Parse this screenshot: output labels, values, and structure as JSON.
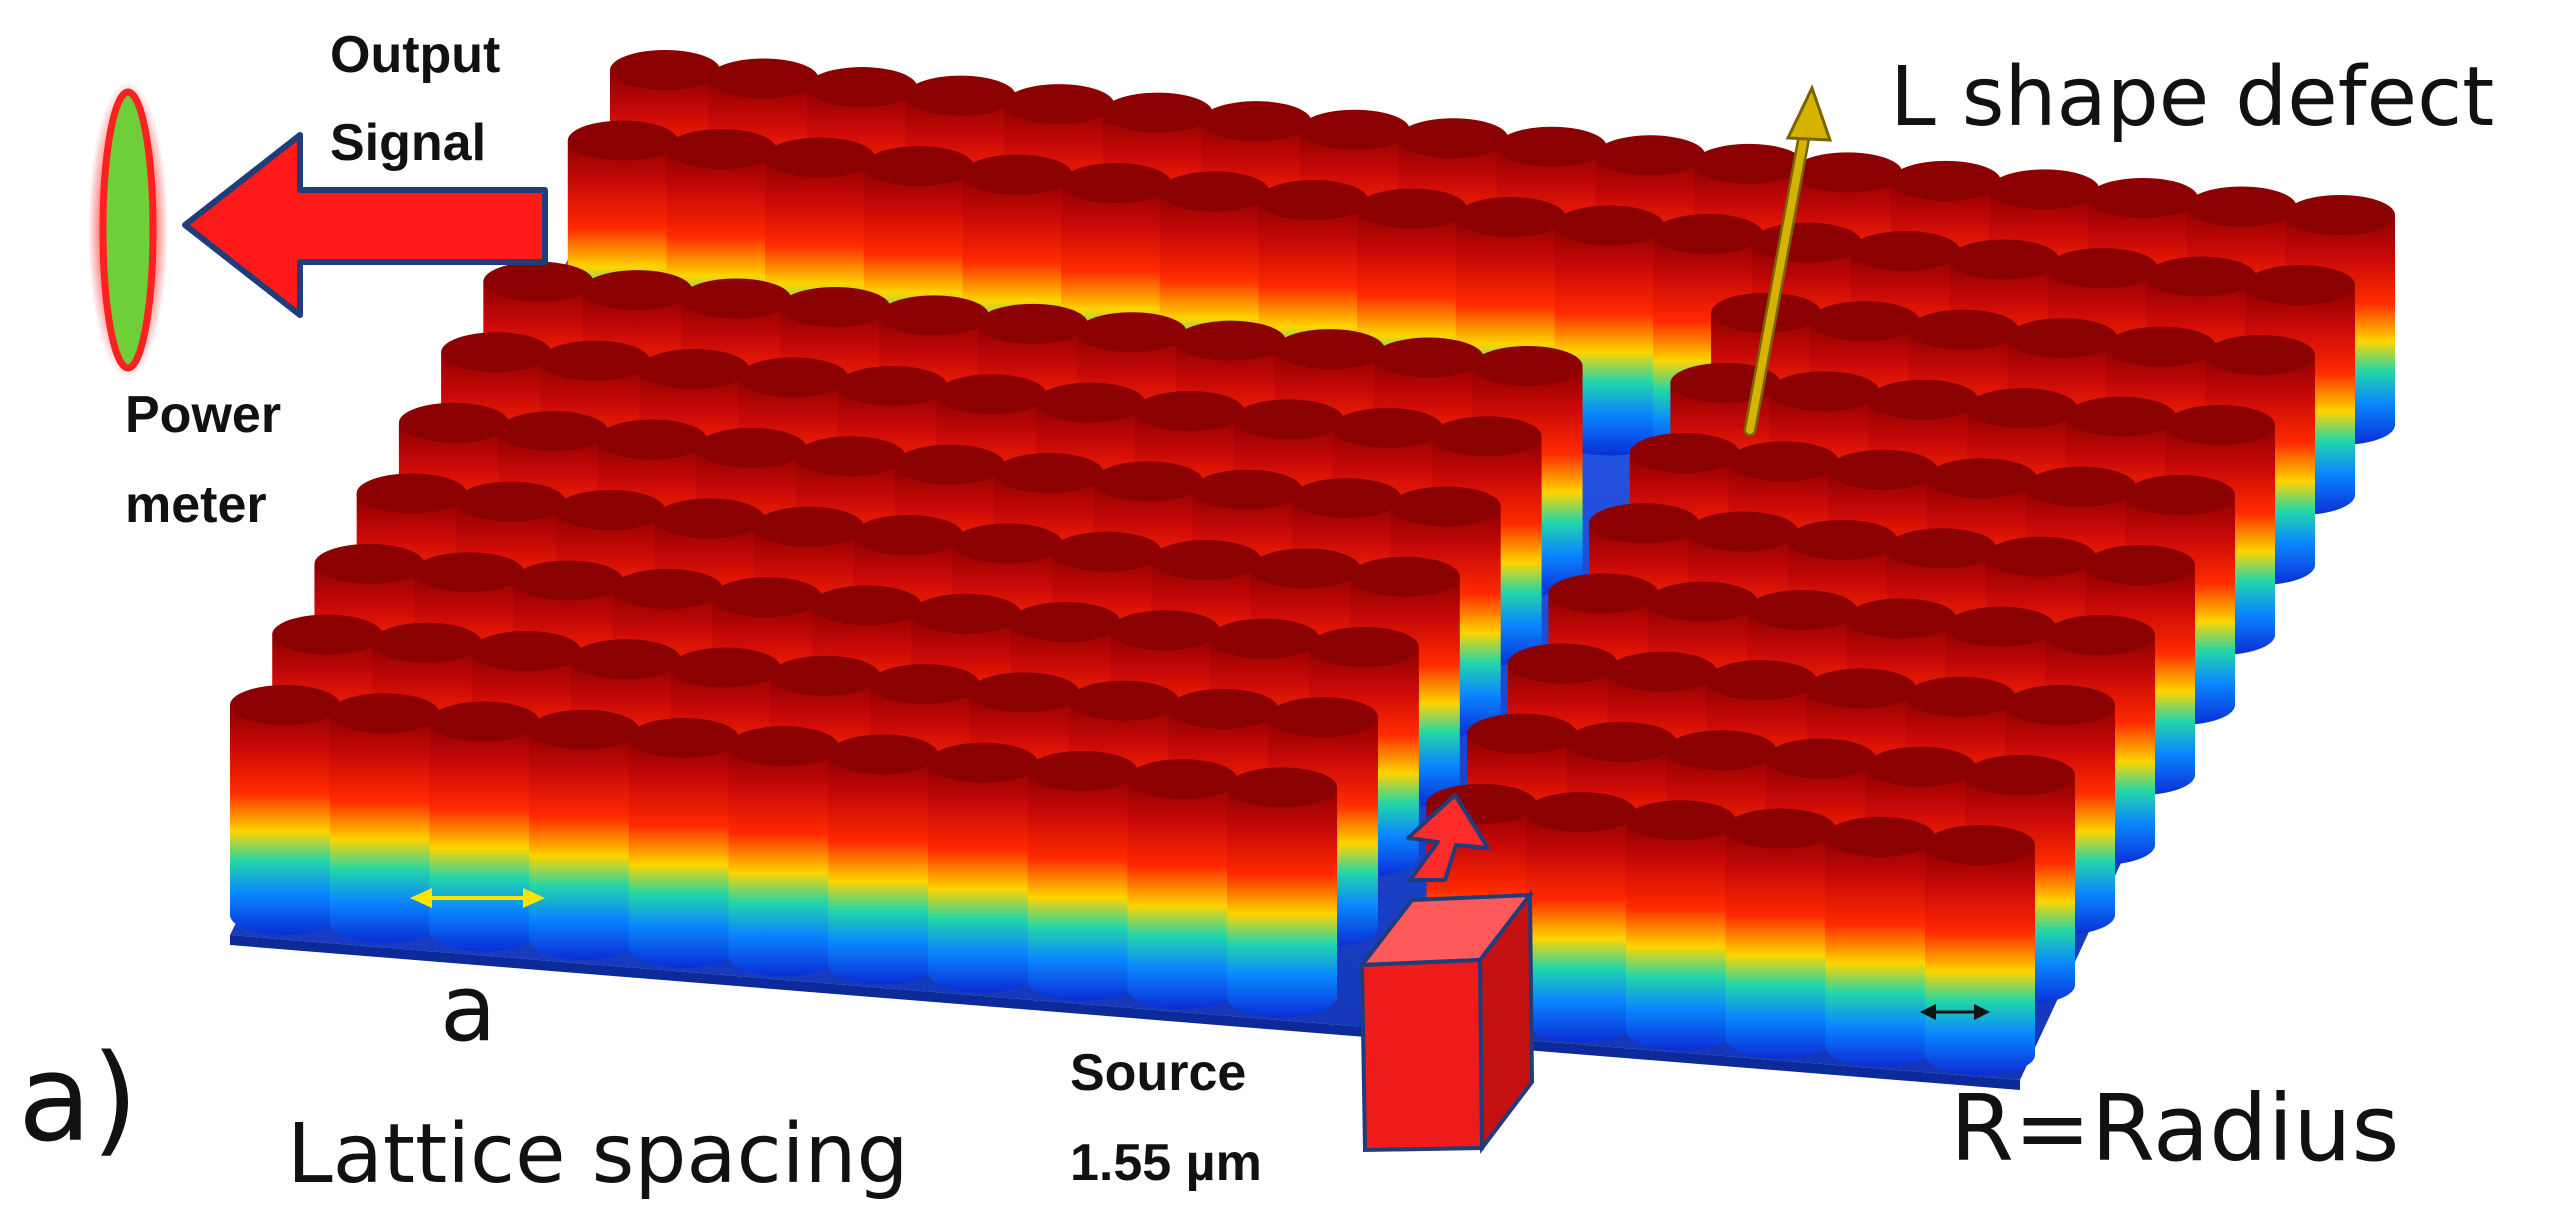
{
  "labels": {
    "panel": "a)",
    "output_line1": "Output",
    "output_line2": "Signal",
    "power_line1": "Power",
    "power_line2": "meter",
    "defect": "L shape defect",
    "spacing_symbol": "a",
    "spacing_text": "Lattice spacing",
    "source_line1": "Source",
    "source_line2": "1.55 µm",
    "radius": "R=Radius"
  },
  "lattice": {
    "rows": 10,
    "cols": 18,
    "defect_row": 2,
    "defect_col": 11
  },
  "colors": {
    "rod_top": "#8b0000",
    "rod_gradient": [
      "#8b0000",
      "#e01010",
      "#ff4a00",
      "#ffd400",
      "#17d4b4",
      "#0a86ff",
      "#0a2dd6"
    ],
    "substrate": "#1e4fd8",
    "arrow_red": "#ff1a1a",
    "arrow_outline": "#1f3d7a",
    "meter_fill": "#6fcf3a",
    "meter_outline": "#ff2020",
    "defect_arrow": "#d6b300",
    "spacing_arrow": "#ffe600",
    "source_box": "#ee1b1b"
  }
}
